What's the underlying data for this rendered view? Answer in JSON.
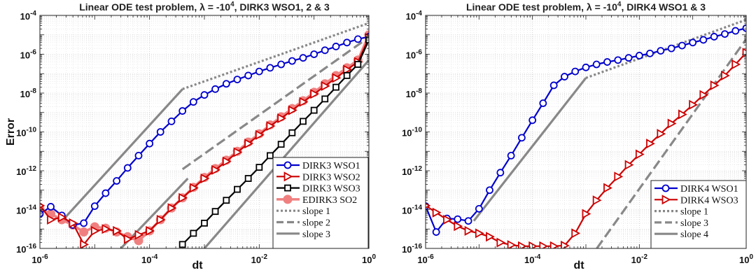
{
  "chart_data": [
    {
      "type": "line",
      "title": "Linear ODE test problem, λ = -10^4, DIRK3 WSO1, 2 & 3",
      "xlabel": "dt",
      "ylabel": "Error",
      "xscale": "log",
      "yscale": "log",
      "xlim": [
        1e-06,
        1
      ],
      "ylim": [
        1e-16,
        0.0001
      ],
      "x_ticks": [
        {
          "v": -6,
          "t": "10-6"
        },
        {
          "v": -4,
          "t": "10-4"
        },
        {
          "v": -2,
          "t": "10-2"
        },
        {
          "v": 0,
          "t": "100"
        }
      ],
      "y_ticks": [
        {
          "v": -16,
          "t": "10-16"
        },
        {
          "v": -14,
          "t": "10-14"
        },
        {
          "v": -12,
          "t": "10-12"
        },
        {
          "v": -10,
          "t": "10-10"
        },
        {
          "v": -8,
          "t": "10-8"
        },
        {
          "v": -6,
          "t": "10-6"
        },
        {
          "v": -4,
          "t": "10-4"
        }
      ],
      "grid": true,
      "legend_position": "bottom-right",
      "series": [
        {
          "name": "DIRK3 WSO1",
          "color": "#0000cc",
          "marker": "circle",
          "x": [
            1e-06,
            1.58e-06,
            2.51e-06,
            3.98e-06,
            6.31e-06,
            1e-05,
            1.58e-05,
            2.51e-05,
            3.98e-05,
            6.31e-05,
            0.0001,
            0.000158,
            0.000251,
            0.000398,
            0.000631,
            0.001,
            0.00158,
            0.00251,
            0.00398,
            0.00631,
            0.01,
            0.0158,
            0.0251,
            0.0398,
            0.0631,
            0.1,
            0.158,
            0.251,
            0.398,
            0.631,
            1
          ],
          "y": [
            6e-15,
            1.4e-14,
            5e-15,
            1.6e-15,
            2e-15,
            1.5e-14,
            7e-14,
            3e-13,
            1.4e-12,
            6e-12,
            2.5e-11,
            1e-10,
            3.5e-10,
            1.2e-09,
            3.5e-09,
            8e-09,
            1.6e-08,
            3e-08,
            5e-08,
            8e-08,
            1.3e-07,
            2e-07,
            3e-07,
            4.5e-07,
            6.5e-07,
            1e-06,
            1.6e-06,
            2.5e-06,
            4e-06,
            6e-06,
            8e-06
          ]
        },
        {
          "name": "DIRK3 WSO2",
          "color": "#cc0000",
          "marker": "triangle-right",
          "x": [
            1e-06,
            1.58e-06,
            2.51e-06,
            3.98e-06,
            6.31e-06,
            1e-05,
            1.58e-05,
            2.51e-05,
            3.98e-05,
            6.31e-05,
            0.0001,
            0.000158,
            0.000251,
            0.000398,
            0.000631,
            0.001,
            0.00158,
            0.00251,
            0.00398,
            0.00631,
            0.01,
            0.0158,
            0.0251,
            0.0398,
            0.0631,
            0.1,
            0.158,
            0.251,
            0.398,
            0.631,
            1
          ],
          "y": [
            1.6e-14,
            3e-15,
            4e-15,
            2e-15,
            1.6e-16,
            8e-16,
            1e-15,
            8e-16,
            3e-16,
            5e-16,
            8e-16,
            3e-15,
            1.2e-14,
            4e-14,
            1.3e-13,
            4e-13,
            1.1e-12,
            3e-12,
            9e-12,
            2.5e-11,
            7e-11,
            2e-10,
            5e-10,
            1.3e-09,
            3.5e-09,
            9e-09,
            2.3e-08,
            6e-08,
            1.6e-07,
            4e-07,
            7e-06
          ]
        },
        {
          "name": "DIRK3 WSO3",
          "color": "#000000",
          "marker": "square",
          "x": [
            0.000398,
            0.000631,
            0.001,
            0.00158,
            0.00251,
            0.00398,
            0.00631,
            0.01,
            0.0158,
            0.0251,
            0.0398,
            0.0631,
            0.1,
            0.158,
            0.251,
            0.398,
            0.631,
            1
          ],
          "y": [
            1.6e-16,
            6e-16,
            2e-15,
            8e-15,
            3e-14,
            1.1e-13,
            4e-13,
            1.5e-12,
            6e-12,
            2.3e-11,
            9e-11,
            3.5e-10,
            1.3e-09,
            5e-09,
            2e-08,
            8e-08,
            3e-07,
            5.5e-06
          ]
        },
        {
          "name": "EDIRK3 SO2",
          "color": "#f08080",
          "marker": "filled-circle",
          "x": [
            1e-06,
            1.58e-06,
            2.51e-06,
            3.98e-06,
            6.31e-06,
            1e-05,
            1.58e-05,
            2.51e-05,
            3.98e-05,
            6.31e-05,
            0.0001,
            0.000158,
            0.000251,
            0.000398,
            0.000631,
            0.001,
            0.00158,
            0.00251,
            0.00398,
            0.00631,
            0.01,
            0.0158,
            0.0251,
            0.0398,
            0.0631,
            0.1,
            0.158,
            0.251,
            0.398,
            0.631,
            1
          ],
          "y": [
            1.1e-14,
            6e-15,
            3e-15,
            1.6e-15,
            7e-16,
            1.3e-15,
            1.1e-15,
            7e-16,
            4e-16,
            2.5e-16,
            8e-16,
            3e-15,
            1.2e-14,
            4e-14,
            1.4e-13,
            4.5e-13,
            1.3e-12,
            3.5e-12,
            1e-11,
            3e-11,
            8e-11,
            2.3e-10,
            6e-10,
            1.6e-09,
            4e-09,
            1.1e-08,
            3e-08,
            8e-08,
            2e-07,
            5e-07,
            1e-05
          ]
        },
        {
          "name": "slope 1",
          "color": "#888888",
          "dash": "dotted",
          "x": [
            0.0004,
            1
          ],
          "y": [
            1.6e-08,
            4e-05
          ]
        },
        {
          "name": "slope 2",
          "color": "#888888",
          "dash": "dashed",
          "x": [
            0.0004,
            1
          ],
          "y": [
            1.2e-12,
            7.5e-06
          ]
        },
        {
          "name": "slope 3",
          "color": "#888888",
          "dash": "solid",
          "segments": [
            {
              "x": [
                2.5e-06,
                0.0004
              ],
              "y": [
                2.5e-15,
                1.6e-08
              ]
            },
            {
              "x": [
                3e-05,
                0.0005
              ],
              "y": [
                1e-16,
                4e-13
              ]
            },
            {
              "x": [
                0.001,
                1
              ],
              "y": [
                1e-16,
                5e-07
              ]
            }
          ]
        }
      ]
    },
    {
      "type": "line",
      "title": "Linear ODE test problem, λ = -10^4, DIRK4 WSO1 & 3",
      "xlabel": "dt",
      "ylabel": "",
      "xscale": "log",
      "yscale": "log",
      "xlim": [
        1e-06,
        1
      ],
      "ylim": [
        1e-16,
        0.0001
      ],
      "x_ticks": [
        {
          "v": -6,
          "t": "10-6"
        },
        {
          "v": -4,
          "t": "10-4"
        },
        {
          "v": -2,
          "t": "10-2"
        },
        {
          "v": 0,
          "t": "100"
        }
      ],
      "y_ticks": [
        {
          "v": -16,
          "t": "10-16"
        },
        {
          "v": -14,
          "t": "10-14"
        },
        {
          "v": -12,
          "t": "10-12"
        },
        {
          "v": -10,
          "t": "10-10"
        },
        {
          "v": -8,
          "t": "10-8"
        },
        {
          "v": -6,
          "t": "10-6"
        },
        {
          "v": -4,
          "t": "10-4"
        }
      ],
      "grid": true,
      "legend_position": "bottom-right",
      "series": [
        {
          "name": "DIRK4 WSO1",
          "color": "#0000cc",
          "marker": "circle",
          "x": [
            1e-06,
            1.58e-06,
            2.51e-06,
            3.98e-06,
            6.31e-06,
            1e-05,
            1.58e-05,
            2.51e-05,
            3.98e-05,
            6.31e-05,
            0.0001,
            0.000158,
            0.000251,
            0.000398,
            0.000631,
            0.001,
            0.00158,
            0.00251,
            0.00398,
            0.00631,
            0.01,
            0.0158,
            0.0251,
            0.0398,
            0.0631,
            0.1,
            0.158,
            0.251,
            0.398,
            0.631,
            1
          ],
          "y": [
            1.5e-14,
            7e-16,
            3.5e-15,
            3.2e-15,
            2.6e-15,
            1.1e-14,
            1e-13,
            8e-13,
            6e-12,
            5e-11,
            4e-10,
            3e-09,
            2.5e-08,
            7e-08,
            1.3e-07,
            2.1e-07,
            3e-07,
            4e-07,
            5e-07,
            6.5e-07,
            8.5e-07,
            1.1e-06,
            1.5e-06,
            2e-06,
            2.8e-06,
            4e-06,
            5.5e-06,
            8e-06,
            1.1e-05,
            1.6e-05,
            2.2e-05
          ]
        },
        {
          "name": "DIRK4 WSO3",
          "color": "#cc0000",
          "marker": "triangle-right",
          "x": [
            1e-06,
            1.58e-06,
            2.51e-06,
            3.98e-06,
            6.31e-06,
            1e-05,
            1.58e-05,
            2.51e-05,
            3.98e-05,
            6.31e-05,
            0.0001,
            0.000158,
            0.000251,
            0.000398,
            0.000631,
            0.001,
            0.00158,
            0.00251,
            0.00398,
            0.00631,
            0.01,
            0.0158,
            0.0251,
            0.0398,
            0.0631,
            0.1,
            0.158,
            0.251,
            0.398,
            0.631,
            1
          ],
          "y": [
            1.6e-14,
            7e-15,
            3e-15,
            1.4e-15,
            8e-16,
            6e-16,
            4e-16,
            2e-16,
            1.5e-16,
            1.3e-16,
            1.3e-16,
            1.3e-16,
            1.3e-16,
            1.4e-16,
            6e-16,
            6e-15,
            3e-14,
            1.3e-13,
            5e-13,
            2e-12,
            7e-12,
            2.5e-11,
            8e-11,
            2.7e-10,
            8e-10,
            2.5e-09,
            8e-09,
            2.5e-08,
            8e-08,
            3e-07,
            1.2e-06
          ]
        },
        {
          "name": "slope 1",
          "color": "#888888",
          "dash": "dotted",
          "x": [
            0.001,
            1
          ],
          "y": [
            6e-08,
            6e-05
          ]
        },
        {
          "name": "slope 3",
          "color": "#888888",
          "dash": "dashed",
          "x": [
            0.0016,
            1
          ],
          "y": [
            1e-16,
            6e-06
          ]
        },
        {
          "name": "slope 4",
          "color": "#888888",
          "dash": "solid",
          "x": [
            8e-06,
            0.001
          ],
          "y": [
            2.6e-15,
            6e-08
          ]
        }
      ]
    }
  ]
}
